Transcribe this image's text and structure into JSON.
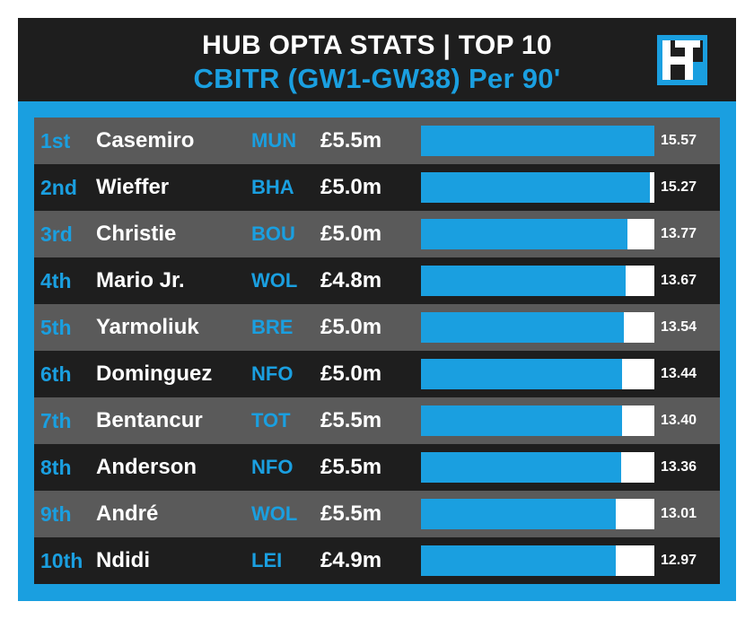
{
  "header": {
    "title": "HUB OPTA STATS | TOP 10",
    "subtitle": "CBITR (GW1-GW38) Per 90'"
  },
  "colors": {
    "accent": "#1a9fe0",
    "row_dark": "#1e1e1e",
    "row_light": "#5a5a5a",
    "bar_track": "#ffffff"
  },
  "chart_data": {
    "type": "bar",
    "orientation": "horizontal",
    "title": "HUB OPTA STATS | TOP 10",
    "subtitle": "CBITR (GW1-GW38) Per 90'",
    "xlim": [
      0,
      15.57
    ],
    "rows": [
      {
        "rank": "1st",
        "name": "Casemiro",
        "team": "MUN",
        "price": "£5.5m",
        "value": 15.57,
        "label": "15.57"
      },
      {
        "rank": "2nd",
        "name": "Wieffer",
        "team": "BHA",
        "price": "£5.0m",
        "value": 15.27,
        "label": "15.27"
      },
      {
        "rank": "3rd",
        "name": "Christie",
        "team": "BOU",
        "price": "£5.0m",
        "value": 13.77,
        "label": "13.77"
      },
      {
        "rank": "4th",
        "name": "Mario Jr.",
        "team": "WOL",
        "price": "£4.8m",
        "value": 13.67,
        "label": "13.67"
      },
      {
        "rank": "5th",
        "name": "Yarmoliuk",
        "team": "BRE",
        "price": "£5.0m",
        "value": 13.54,
        "label": "13.54"
      },
      {
        "rank": "6th",
        "name": "Dominguez",
        "team": "NFO",
        "price": "£5.0m",
        "value": 13.44,
        "label": "13.44"
      },
      {
        "rank": "7th",
        "name": "Bentancur",
        "team": "TOT",
        "price": "£5.5m",
        "value": 13.4,
        "label": "13.40"
      },
      {
        "rank": "8th",
        "name": "Anderson",
        "team": "NFO",
        "price": "£5.5m",
        "value": 13.36,
        "label": "13.36"
      },
      {
        "rank": "9th",
        "name": "André",
        "team": "WOL",
        "price": "£5.5m",
        "value": 13.01,
        "label": "13.01"
      },
      {
        "rank": "10th",
        "name": "Ndidi",
        "team": "LEI",
        "price": "£4.9m",
        "value": 12.97,
        "label": "12.97"
      }
    ]
  }
}
